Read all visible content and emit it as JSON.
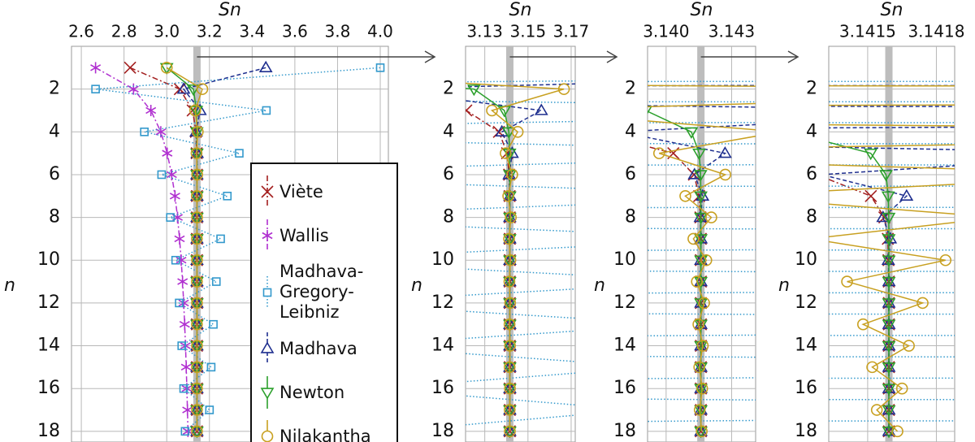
{
  "chart_data": [
    {
      "type": "line",
      "title": "Sn",
      "y_label": "n",
      "grid": true,
      "pi": 3.14159265,
      "xlim": [
        2.554,
        4.038
      ],
      "xticks": [
        2.6,
        2.8,
        {
          "value": 3.0,
          "label": "3.0"
        },
        3.2,
        3.4,
        3.6,
        3.8,
        {
          "value": 4.0,
          "label": "4.0"
        }
      ],
      "ylim": [
        0,
        18.5
      ],
      "yticks": [
        2,
        4,
        6,
        8,
        10,
        12,
        14,
        16,
        18
      ],
      "n": [
        1,
        2,
        3,
        4,
        5,
        6,
        7,
        8,
        9,
        10,
        11,
        12,
        13,
        14,
        15,
        16,
        17,
        18
      ],
      "series": [
        {
          "name": "Viète",
          "color": "#a31f1f",
          "marker": "x",
          "linestyle": "dashdot",
          "values": [
            2.828427,
            3.061467,
            3.121445,
            3.136548,
            3.140331,
            3.141277,
            3.141514,
            3.141573,
            3.141588,
            3.141591,
            3.1415924,
            3.1415926,
            3.1415926,
            3.1415926,
            3.1415926,
            3.1415926,
            3.1415926,
            3.1415926
          ]
        },
        {
          "name": "Wallis",
          "color": "#b030d0",
          "marker": "asterisk",
          "linestyle": "dashdot",
          "values": [
            2.6667,
            2.8444,
            2.9257,
            2.9722,
            3.0022,
            3.0232,
            3.0387,
            3.0506,
            3.06,
            3.0677,
            3.0741,
            3.0794,
            3.084,
            3.0879,
            3.0913,
            3.0943,
            3.097,
            3.0994
          ]
        },
        {
          "name": "Madhava-Gregory-Leibniz",
          "color": "#3399cc",
          "marker": "square",
          "linestyle": "dotted",
          "values": [
            4.0,
            2.6667,
            3.4667,
            2.8952,
            3.3397,
            2.976,
            3.2837,
            3.0171,
            3.2524,
            3.0418,
            3.2323,
            3.0584,
            3.2184,
            3.0703,
            3.2081,
            3.0792,
            3.2003,
            3.0861
          ]
        },
        {
          "name": "Madhava",
          "color": "#1f2f8f",
          "marker": "triangle-up",
          "linestyle": "dashed",
          "values": [
            3.4641,
            3.0792,
            3.1562,
            3.1379,
            3.1427,
            3.1413,
            3.14167,
            3.141567,
            3.141599,
            3.14159,
            3.1415929,
            3.1415926,
            3.1415927,
            3.1415927,
            3.1415927,
            3.1415927,
            3.1415927,
            3.1415927
          ]
        },
        {
          "name": "Newton",
          "color": "#2ca02c",
          "marker": "triangle-down",
          "linestyle": "solid",
          "values": [
            3.0,
            3.125,
            3.1390625,
            3.1411551,
            3.1415134,
            3.1415801,
            3.1415899,
            3.1415922,
            3.1415925,
            3.1415926,
            3.1415926,
            3.1415926,
            3.1415926,
            3.1415926,
            3.1415926,
            3.1415926,
            3.1415926,
            3.1415926
          ]
        },
        {
          "name": "Nilakantha",
          "color": "#c8a020",
          "marker": "circle",
          "linestyle": "solid",
          "values": [
            3.0,
            3.16667,
            3.13333,
            3.14524,
            3.13968,
            3.14271,
            3.14088,
            3.14207,
            3.14125,
            3.14184,
            3.14141,
            3.14174,
            3.14148,
            3.14168,
            3.14152,
            3.14165,
            3.14154,
            3.14163
          ]
        }
      ]
    },
    {
      "type": "line",
      "title": "Sn",
      "y_label": "n",
      "grid": true,
      "pi": 3.14159265,
      "xlim": [
        3.1211,
        3.1719
      ],
      "xticks": [
        3.13,
        3.15,
        3.17
      ],
      "ylim": [
        0,
        18.5
      ],
      "yticks": [
        2,
        4,
        6,
        8,
        10,
        12,
        14,
        16,
        18
      ],
      "n": [
        1,
        2,
        3,
        4,
        5,
        6,
        7,
        8,
        9,
        10,
        11,
        12,
        13,
        14,
        15,
        16,
        17,
        18
      ],
      "series": [
        {
          "color": "#a31f1f",
          "marker": "x",
          "linestyle": "dashdot",
          "values": [
            2.828427,
            3.061467,
            3.121445,
            3.136548,
            3.140331,
            3.141277,
            3.141514,
            3.141573,
            3.141588,
            3.141591,
            3.1415924,
            3.1415926,
            3.1415926,
            3.1415926,
            3.1415926,
            3.1415926,
            3.1415926,
            3.1415926
          ]
        },
        {
          "color": "#b030d0",
          "marker": "asterisk",
          "linestyle": "dashdot",
          "values": [
            2.6667,
            2.8444,
            2.9257,
            2.9722,
            3.0022,
            3.0232,
            3.0387,
            3.0506,
            3.06,
            3.0677,
            3.0741,
            3.0794,
            3.084,
            3.0879,
            3.0913,
            3.0943,
            3.097,
            3.0994
          ]
        },
        {
          "color": "#3399cc",
          "marker": "square",
          "linestyle": "dotted",
          "values": [
            4.0,
            2.6667,
            3.4667,
            2.8952,
            3.3397,
            2.976,
            3.2837,
            3.0171,
            3.2524,
            3.0418,
            3.2323,
            3.0584,
            3.2184,
            3.0703,
            3.2081,
            3.0792,
            3.2003,
            3.0861
          ]
        },
        {
          "color": "#1f2f8f",
          "marker": "triangle-up",
          "linestyle": "dashed",
          "values": [
            3.4641,
            3.0792,
            3.1562,
            3.1379,
            3.1427,
            3.1413,
            3.14167,
            3.141567,
            3.141599,
            3.14159,
            3.1415929,
            3.1415926,
            3.1415927,
            3.1415927,
            3.1415927,
            3.1415927,
            3.1415927,
            3.1415927
          ]
        },
        {
          "color": "#2ca02c",
          "marker": "triangle-down",
          "linestyle": "solid",
          "values": [
            3.0,
            3.125,
            3.1390625,
            3.1411551,
            3.1415134,
            3.1415801,
            3.1415899,
            3.1415922,
            3.1415925,
            3.1415926,
            3.1415926,
            3.1415926,
            3.1415926,
            3.1415926,
            3.1415926,
            3.1415926,
            3.1415926,
            3.1415926
          ]
        },
        {
          "color": "#c8a020",
          "marker": "circle",
          "linestyle": "solid",
          "values": [
            3.0,
            3.16667,
            3.13333,
            3.14524,
            3.13968,
            3.14271,
            3.14088,
            3.14207,
            3.14125,
            3.14184,
            3.14141,
            3.14174,
            3.14148,
            3.14168,
            3.14152,
            3.14165,
            3.14154,
            3.14163
          ]
        }
      ]
    },
    {
      "type": "line",
      "title": "Sn",
      "y_label": "n",
      "grid": true,
      "pi": 3.14159265,
      "xlim": [
        3.13915,
        3.1441
      ],
      "xticks": [
        {
          "value": 3.14,
          "label": "3.140"
        },
        3.143
      ],
      "ylim": [
        0,
        18.5
      ],
      "yticks": [
        2,
        4,
        6,
        8,
        10,
        12,
        14,
        16,
        18
      ],
      "n": [
        1,
        2,
        3,
        4,
        5,
        6,
        7,
        8,
        9,
        10,
        11,
        12,
        13,
        14,
        15,
        16,
        17,
        18
      ],
      "series": [
        {
          "color": "#a31f1f",
          "marker": "x",
          "linestyle": "dashdot",
          "values": [
            2.828427,
            3.061467,
            3.121445,
            3.136548,
            3.140331,
            3.141277,
            3.141514,
            3.141573,
            3.141588,
            3.141591,
            3.1415924,
            3.1415926,
            3.1415926,
            3.1415926,
            3.1415926,
            3.1415926,
            3.1415926,
            3.1415926
          ]
        },
        {
          "color": "#b030d0",
          "marker": "asterisk",
          "linestyle": "dashdot",
          "values": [
            2.6667,
            2.8444,
            2.9257,
            2.9722,
            3.0022,
            3.0232,
            3.0387,
            3.0506,
            3.06,
            3.0677,
            3.0741,
            3.0794,
            3.084,
            3.0879,
            3.0913,
            3.0943,
            3.097,
            3.0994
          ]
        },
        {
          "color": "#3399cc",
          "marker": "square",
          "linestyle": "dotted",
          "values": [
            4.0,
            2.6667,
            3.4667,
            2.8952,
            3.3397,
            2.976,
            3.2837,
            3.0171,
            3.2524,
            3.0418,
            3.2323,
            3.0584,
            3.2184,
            3.0703,
            3.2081,
            3.0792,
            3.2003,
            3.0861
          ]
        },
        {
          "color": "#1f2f8f",
          "marker": "triangle-up",
          "linestyle": "dashed",
          "values": [
            3.4641,
            3.0792,
            3.1562,
            3.1379,
            3.1427,
            3.1413,
            3.14167,
            3.141567,
            3.141599,
            3.14159,
            3.1415929,
            3.1415926,
            3.1415927,
            3.1415927,
            3.1415927,
            3.1415927,
            3.1415927,
            3.1415927
          ]
        },
        {
          "color": "#2ca02c",
          "marker": "triangle-down",
          "linestyle": "solid",
          "values": [
            3.0,
            3.125,
            3.1390625,
            3.1411551,
            3.1415134,
            3.1415801,
            3.1415899,
            3.1415922,
            3.1415925,
            3.1415926,
            3.1415926,
            3.1415926,
            3.1415926,
            3.1415926,
            3.1415926,
            3.1415926,
            3.1415926,
            3.1415926
          ]
        },
        {
          "color": "#c8a020",
          "marker": "circle",
          "linestyle": "solid",
          "values": [
            3.0,
            3.16667,
            3.13333,
            3.14524,
            3.13968,
            3.14271,
            3.14088,
            3.14207,
            3.14125,
            3.14184,
            3.14141,
            3.14174,
            3.14148,
            3.14168,
            3.14152,
            3.14165,
            3.14154,
            3.14163
          ]
        }
      ]
    },
    {
      "type": "line",
      "title": "Sn",
      "y_label": "n",
      "grid": true,
      "pi": 3.14159265,
      "xlim": [
        3.14133,
        3.14188
      ],
      "xticks": [
        3.1415,
        3.1418
      ],
      "ylim": [
        0,
        18.5
      ],
      "yticks": [
        2,
        4,
        6,
        8,
        10,
        12,
        14,
        16,
        18
      ],
      "n": [
        1,
        2,
        3,
        4,
        5,
        6,
        7,
        8,
        9,
        10,
        11,
        12,
        13,
        14,
        15,
        16,
        17,
        18
      ],
      "series": [
        {
          "color": "#a31f1f",
          "marker": "x",
          "linestyle": "dashdot",
          "values": [
            2.828427,
            3.061467,
            3.121445,
            3.136548,
            3.140331,
            3.141277,
            3.141514,
            3.141573,
            3.141588,
            3.141591,
            3.1415924,
            3.1415926,
            3.1415926,
            3.1415926,
            3.1415926,
            3.1415926,
            3.1415926,
            3.1415926
          ]
        },
        {
          "color": "#b030d0",
          "marker": "asterisk",
          "linestyle": "dashdot",
          "values": [
            2.6667,
            2.8444,
            2.9257,
            2.9722,
            3.0022,
            3.0232,
            3.0387,
            3.0506,
            3.06,
            3.0677,
            3.0741,
            3.0794,
            3.084,
            3.0879,
            3.0913,
            3.0943,
            3.097,
            3.0994
          ]
        },
        {
          "color": "#3399cc",
          "marker": "square",
          "linestyle": "dotted",
          "values": [
            4.0,
            2.6667,
            3.4667,
            2.8952,
            3.3397,
            2.976,
            3.2837,
            3.0171,
            3.2524,
            3.0418,
            3.2323,
            3.0584,
            3.2184,
            3.0703,
            3.2081,
            3.0792,
            3.2003,
            3.0861
          ]
        },
        {
          "color": "#1f2f8f",
          "marker": "triangle-up",
          "linestyle": "dashed",
          "values": [
            3.4641,
            3.0792,
            3.1562,
            3.1379,
            3.1427,
            3.1413,
            3.14167,
            3.141567,
            3.141599,
            3.14159,
            3.1415929,
            3.1415926,
            3.1415927,
            3.1415927,
            3.1415927,
            3.1415927,
            3.1415927,
            3.1415927
          ]
        },
        {
          "color": "#2ca02c",
          "marker": "triangle-down",
          "linestyle": "solid",
          "values": [
            3.0,
            3.125,
            3.1390625,
            3.1411551,
            3.1415134,
            3.1415801,
            3.1415899,
            3.1415922,
            3.1415925,
            3.1415926,
            3.1415926,
            3.1415926,
            3.1415926,
            3.1415926,
            3.1415926,
            3.1415926,
            3.1415926,
            3.1415926
          ]
        },
        {
          "color": "#c8a020",
          "marker": "circle",
          "linestyle": "solid",
          "values": [
            3.0,
            3.16667,
            3.13333,
            3.14524,
            3.13968,
            3.14271,
            3.14088,
            3.14207,
            3.14125,
            3.14184,
            3.14141,
            3.14174,
            3.14148,
            3.14168,
            3.14152,
            3.14165,
            3.14154,
            3.14163
          ]
        }
      ]
    }
  ]
}
